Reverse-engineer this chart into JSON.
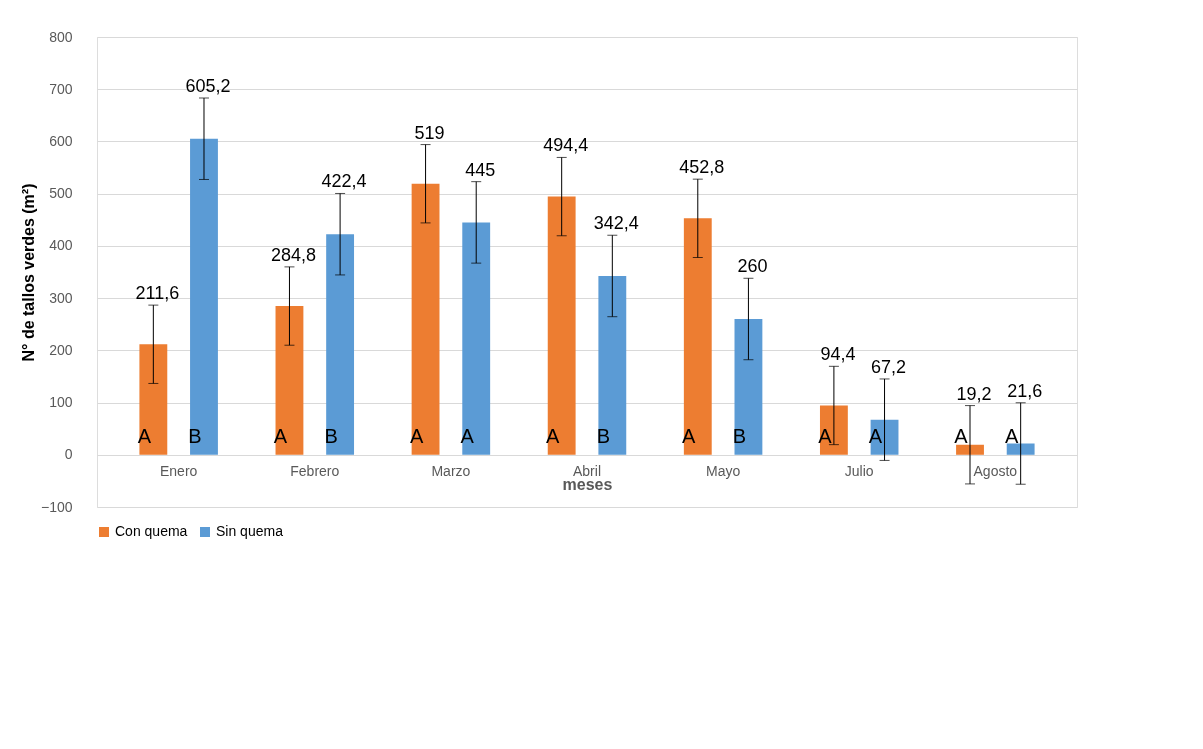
{
  "chart_data": {
    "type": "bar",
    "xlabel": "meses",
    "ylabel": "N° de tallos verdes (m²)",
    "categories": [
      "Enero",
      "Febrero",
      "Marzo",
      "Abril",
      "Mayo",
      "Julio",
      "Agosto"
    ],
    "series": [
      {
        "name": "Con quema",
        "color": "#ed7d31",
        "values": [
          211.6,
          284.8,
          519,
          494.4,
          452.8,
          94.4,
          19.2
        ],
        "errors": [
          75,
          75,
          75,
          75,
          75,
          75,
          75
        ],
        "value_labels": [
          "211,6",
          "284,8",
          "519",
          "494,4",
          "452,8",
          "94,4",
          "19,2"
        ]
      },
      {
        "name": "Sin quema",
        "color": "#5b9bd5",
        "values": [
          605.2,
          422.4,
          445,
          342.4,
          260,
          67.2,
          21.6
        ],
        "errors": [
          78,
          78,
          78,
          78,
          78,
          78,
          78
        ],
        "value_labels": [
          "605,2",
          "422,4",
          "445",
          "342,4",
          "260",
          "67,2",
          "21,6"
        ]
      }
    ],
    "ylim": [
      -100,
      800
    ],
    "yticks": [
      -100,
      0,
      100,
      200,
      300,
      400,
      500,
      600,
      700,
      800
    ],
    "grid": "y",
    "legend": "bottom",
    "annotations": [
      "A",
      "B",
      "A",
      "B",
      "A",
      "A",
      "A",
      "B",
      "A",
      "B",
      "A",
      "A",
      "A",
      "A"
    ]
  }
}
